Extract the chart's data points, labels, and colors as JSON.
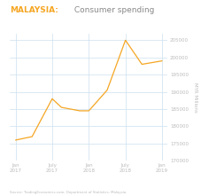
{
  "title_bold": "MALAYSIA:",
  "title_normal": " Consumer spending",
  "x_labels": [
    "Jan\n2017",
    "July\n2017",
    "Jan\n2018",
    "July\n2018",
    "Jan\n2019"
  ],
  "x_positions": [
    0,
    1,
    2,
    3,
    4
  ],
  "data_x": [
    0,
    0.45,
    1.0,
    1.25,
    1.75,
    2.0,
    2.5,
    3.0,
    3.45,
    4.0
  ],
  "data_y": [
    176000,
    177000,
    188000,
    185500,
    184500,
    184500,
    190500,
    205000,
    198000,
    199000
  ],
  "ylim": [
    170000,
    207000
  ],
  "yticks": [
    170000,
    175000,
    180000,
    185000,
    190000,
    195000,
    200000,
    205000
  ],
  "ylabel": "MYR Millions",
  "line_color": "#f5a623",
  "grid_color": "#cce0ee",
  "title_color_bold": "#f5a623",
  "title_color_normal": "#888888",
  "source_text": "Source: TradingEconomics.com, Department of Statistics, Malaysia.",
  "bg_color": "#ffffff",
  "tick_label_color": "#bbbbbb",
  "ylabel_color": "#bbbbbb"
}
